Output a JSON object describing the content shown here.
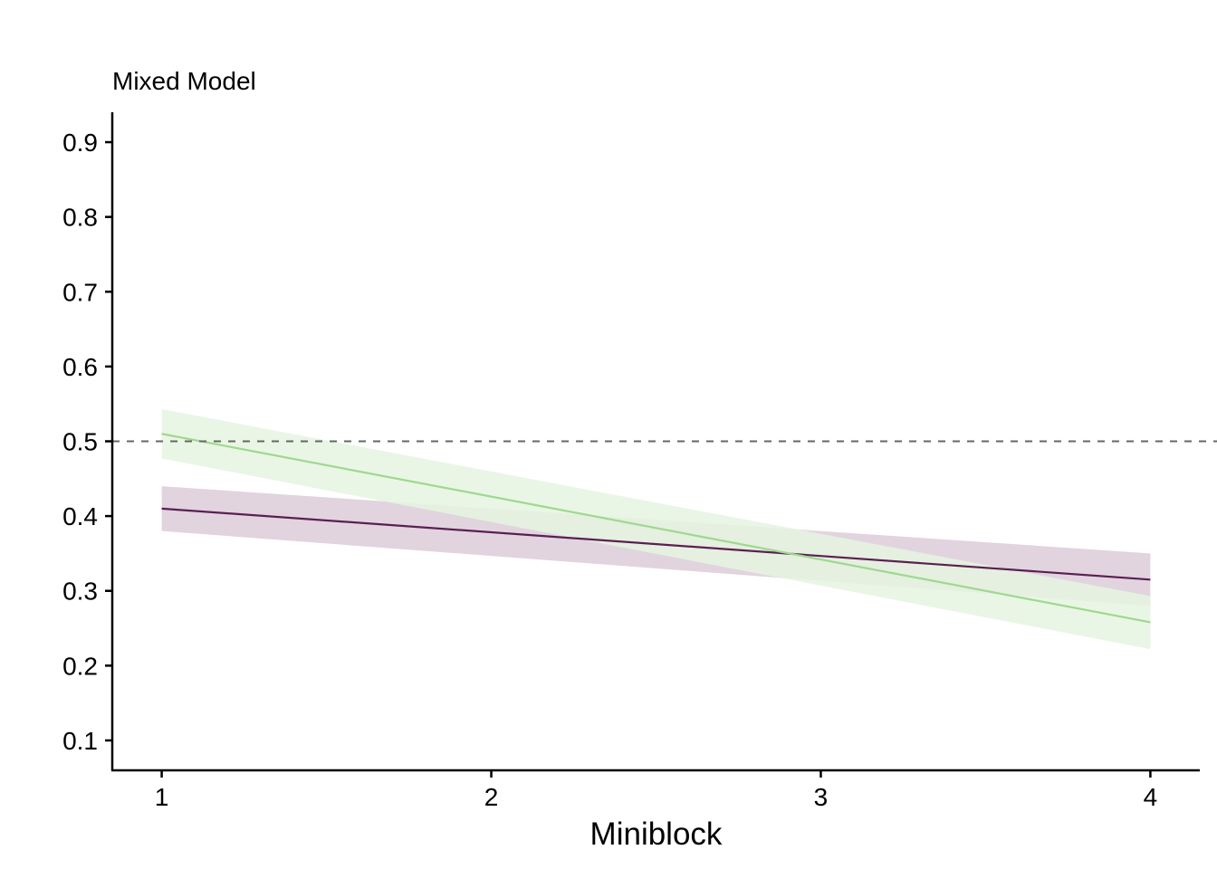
{
  "chart_data": {
    "type": "line",
    "subtitle": "Mixed Model",
    "xlabel": "Miniblock",
    "ylabel": "",
    "x": [
      1,
      2,
      3,
      4
    ],
    "xlim": [
      0.85,
      4.15
    ],
    "ylim": [
      0.06,
      0.94
    ],
    "yticks": [
      0.1,
      0.2,
      0.3,
      0.4,
      0.5,
      0.6,
      0.7,
      0.8,
      0.9
    ],
    "ytick_labels": [
      "0.1",
      "0.2",
      "0.3",
      "0.4",
      "0.5",
      "0.6",
      "0.7",
      "0.8",
      "0.9"
    ],
    "xticks": [
      1,
      2,
      3,
      4
    ],
    "xtick_labels": [
      "1",
      "2",
      "3",
      "4"
    ],
    "reference_line": {
      "y": 0.5,
      "style": "dashed",
      "color": "#666666"
    },
    "grid": false,
    "legend": "none",
    "series": [
      {
        "color": "#5b1f52",
        "band_color": "#dcccd9",
        "x": [
          1,
          4
        ],
        "y": [
          0.41,
          0.315
        ],
        "lower": [
          0.38,
          0.28
        ],
        "upper": [
          0.44,
          0.35
        ]
      },
      {
        "color": "#9ed98e",
        "band_color": "#e5f5e0",
        "x": [
          1,
          4
        ],
        "y": [
          0.51,
          0.258
        ],
        "lower": [
          0.477,
          0.222
        ],
        "upper": [
          0.543,
          0.293
        ]
      }
    ]
  }
}
